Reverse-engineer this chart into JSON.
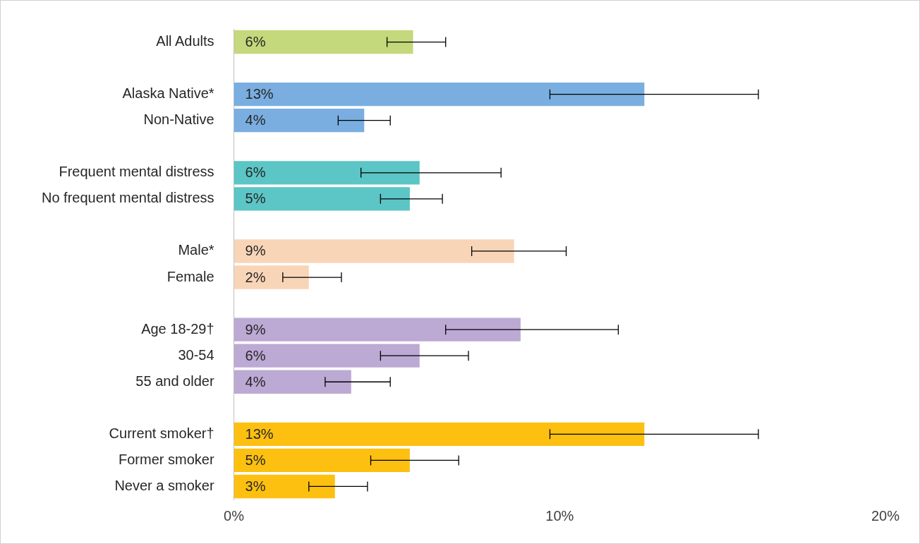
{
  "chart_data": {
    "type": "bar",
    "orientation": "horizontal",
    "categories": [
      "All Adults",
      null,
      "Alaska Native*",
      "Non-Native",
      null,
      "Frequent mental distress",
      "No frequent mental distress",
      null,
      "Male*",
      "Female",
      null,
      "Age 18-29†",
      "30-54",
      "55 and older",
      null,
      "Current smoker†",
      "Former smoker",
      "Never a smoker"
    ],
    "values": [
      5.5,
      null,
      12.6,
      4.0,
      null,
      5.7,
      5.4,
      null,
      8.6,
      2.3,
      null,
      8.8,
      5.7,
      3.6,
      null,
      12.6,
      5.4,
      3.1
    ],
    "colors": [
      "#c4d87c",
      null,
      "#7aaee0",
      "#7aaee0",
      null,
      "#5cc5c5",
      "#5cc5c5",
      null,
      "#f9d5b8",
      "#f9d5b8",
      null,
      "#bca9d4",
      "#bca9d4",
      "#bca9d4",
      null,
      "#fdc010",
      "#fdc010",
      "#fdc010"
    ],
    "errors": [
      [
        4.7,
        6.5
      ],
      null,
      [
        9.7,
        16.1
      ],
      [
        3.2,
        4.8
      ],
      null,
      [
        3.9,
        8.2
      ],
      [
        4.5,
        6.4
      ],
      null,
      [
        7.3,
        10.2
      ],
      [
        1.5,
        3.3
      ],
      null,
      [
        6.5,
        11.8
      ],
      [
        4.5,
        7.2
      ],
      [
        2.8,
        4.8
      ],
      null,
      [
        9.7,
        16.1
      ],
      [
        4.2,
        6.9
      ],
      [
        2.3,
        4.1
      ]
    ],
    "value_labels": [
      "6%",
      null,
      "13%",
      "4%",
      null,
      "6%",
      "5%",
      null,
      "9%",
      "2%",
      null,
      "9%",
      "6%",
      "4%",
      null,
      "13%",
      "5%",
      "3%"
    ],
    "xlim": [
      0,
      20
    ],
    "xticks": [
      {
        "value": 0,
        "label": "0%"
      },
      {
        "value": 10,
        "label": "10%"
      },
      {
        "value": 20,
        "label": "20%"
      }
    ],
    "grid": false,
    "legend": false
  }
}
